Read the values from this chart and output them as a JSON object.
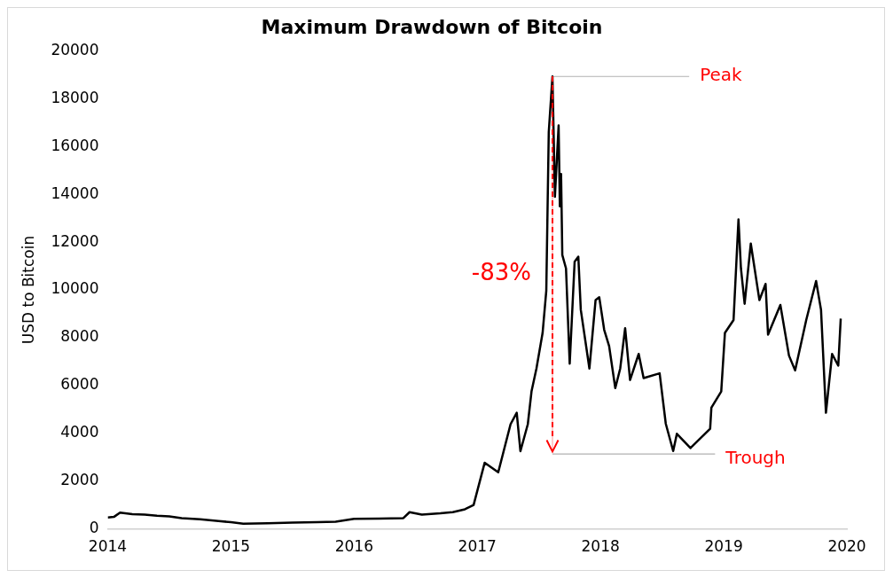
{
  "chart_data": {
    "type": "line",
    "title": "Maximum Drawdown of Bitcoin",
    "ylabel": "USD to Bitcoin",
    "x": [
      2014.0,
      2014.05,
      2014.1,
      2014.2,
      2014.3,
      2014.4,
      2014.5,
      2014.6,
      2014.75,
      2014.9,
      2015.0,
      2015.1,
      2015.3,
      2015.5,
      2015.7,
      2015.85,
      2016.0,
      2016.2,
      2016.4,
      2016.45,
      2016.55,
      2016.7,
      2016.8,
      2016.9,
      2016.97,
      2017.06,
      2017.17,
      2017.27,
      2017.32,
      2017.35,
      2017.41,
      2017.44,
      2017.48,
      2017.53,
      2017.56,
      2017.58,
      2017.61,
      2017.63,
      2017.66,
      2017.67,
      2017.68,
      2017.69,
      2017.72,
      2017.75,
      2017.79,
      2017.82,
      2017.84,
      2017.91,
      2017.96,
      2017.99,
      2018.03,
      2018.07,
      2018.12,
      2018.16,
      2018.2,
      2018.24,
      2018.31,
      2018.35,
      2018.48,
      2018.53,
      2018.59,
      2018.62,
      2018.73,
      2018.89,
      2018.9,
      2018.98,
      2019.01,
      2019.08,
      2019.12,
      2019.14,
      2019.17,
      2019.22,
      2019.29,
      2019.34,
      2019.36,
      2019.46,
      2019.53,
      2019.58,
      2019.67,
      2019.75,
      2019.79,
      2019.83,
      2019.88,
      2019.93,
      2019.95
    ],
    "series": [
      {
        "color": "#000000",
        "values": [
          480,
          500,
          680,
          620,
          600,
          550,
          520,
          450,
          400,
          330,
          280,
          220,
          240,
          260,
          280,
          300,
          420,
          430,
          450,
          700,
          600,
          650,
          700,
          820,
          1000,
          2770,
          2370,
          4380,
          4860,
          3250,
          4380,
          5750,
          6710,
          8200,
          9970,
          16600,
          18930,
          13900,
          16880,
          13500,
          14850,
          11460,
          10900,
          6910,
          11180,
          11390,
          9170,
          6710,
          9570,
          9690,
          8330,
          7650,
          5890,
          6710,
          8400,
          6230,
          7320,
          6310,
          6510,
          4400,
          3260,
          3980,
          3380,
          4190,
          5070,
          5750,
          8200,
          8740,
          12950,
          10900,
          9420,
          11940,
          9570,
          10250,
          8130,
          9370,
          7250,
          6630,
          8740,
          10370,
          9170,
          4860,
          7320,
          6830,
          8800
        ]
      },
      {
        "type": "line",
        "color": "#b0b0b0",
        "x": [
          2017.61,
          2018.72
        ],
        "values": [
          18930,
          18930
        ]
      },
      {
        "type": "line",
        "color": "#b0b0b0",
        "x": [
          2017.61,
          2018.93
        ],
        "values": [
          3130,
          3130
        ]
      }
    ],
    "xlim": [
      2014,
      2020
    ],
    "xticks": [
      2014,
      2015,
      2016,
      2017,
      2018,
      2019,
      2020
    ],
    "ylim": [
      0,
      20000
    ],
    "yticks": [
      0,
      2000,
      4000,
      6000,
      8000,
      10000,
      12000,
      14000,
      16000,
      18000,
      20000
    ],
    "grid": false,
    "legend": false,
    "marker": "none",
    "line_style": "solid",
    "annotations": [
      "Peak",
      "Trough",
      "-83%"
    ]
  }
}
